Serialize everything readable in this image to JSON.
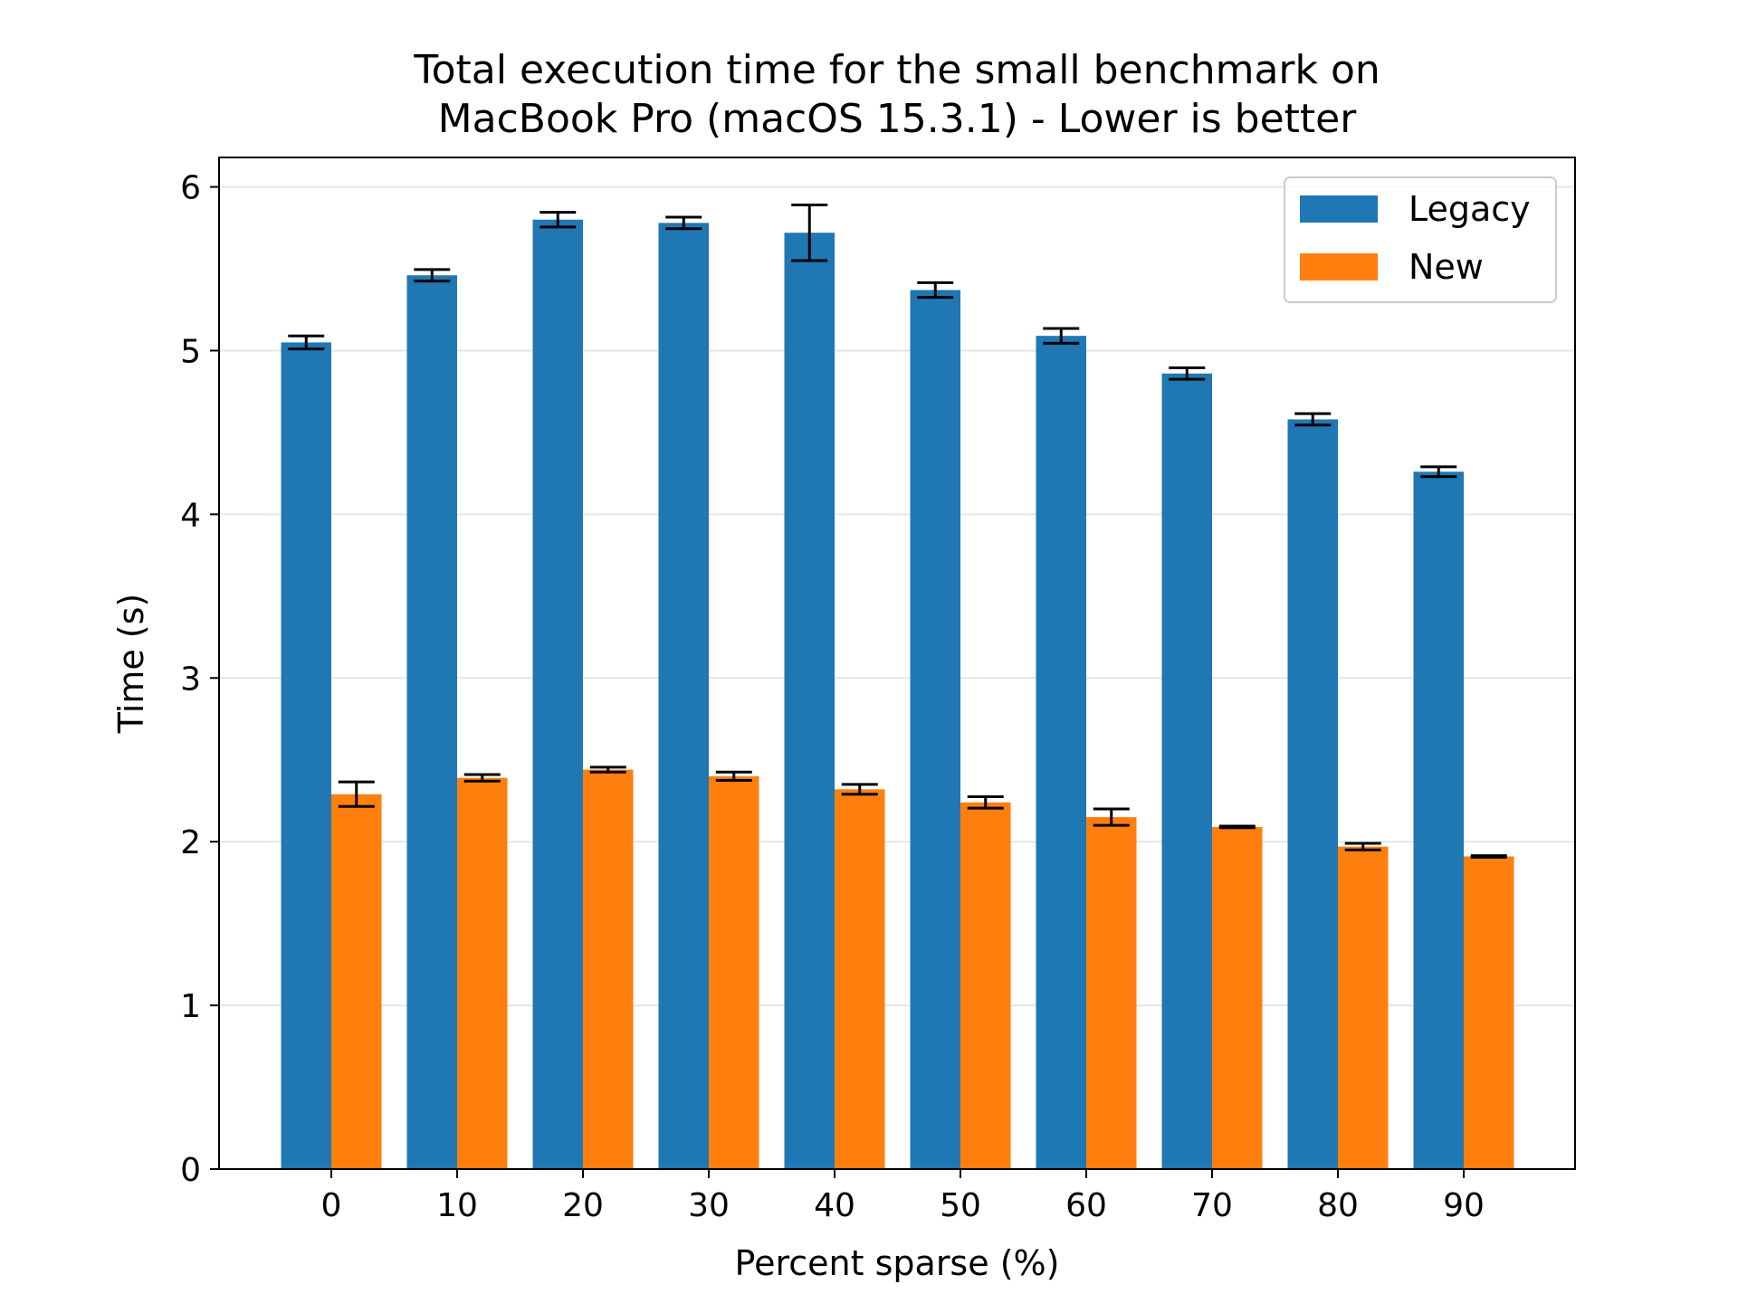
{
  "chart_data": {
    "type": "bar",
    "title_lines": [
      "Total execution time for the small benchmark on",
      "MacBook Pro (macOS 15.3.1) - Lower is better"
    ],
    "xlabel": "Percent sparse (%)",
    "ylabel": "Time (s)",
    "categories": [
      "0",
      "10",
      "20",
      "30",
      "40",
      "50",
      "60",
      "70",
      "80",
      "90"
    ],
    "ylim": [
      0,
      6.18
    ],
    "yticks": [
      "0",
      "1",
      "2",
      "3",
      "4",
      "5",
      "6"
    ],
    "grid": "horizontal",
    "legend_position": "top-right",
    "series": [
      {
        "name": "Legacy",
        "color": "#1f77b4",
        "values": [
          5.05,
          5.46,
          5.8,
          5.78,
          5.72,
          5.37,
          5.09,
          4.86,
          4.58,
          4.26
        ],
        "errors": [
          0.04,
          0.035,
          0.045,
          0.035,
          0.17,
          0.045,
          0.045,
          0.035,
          0.035,
          0.03
        ]
      },
      {
        "name": "New",
        "color": "#ff7f0e",
        "values": [
          2.29,
          2.39,
          2.44,
          2.4,
          2.32,
          2.24,
          2.15,
          2.09,
          1.97,
          1.91
        ],
        "errors": [
          0.075,
          0.02,
          0.015,
          0.025,
          0.03,
          0.035,
          0.05,
          0.005,
          0.02,
          0.005
        ]
      }
    ]
  }
}
